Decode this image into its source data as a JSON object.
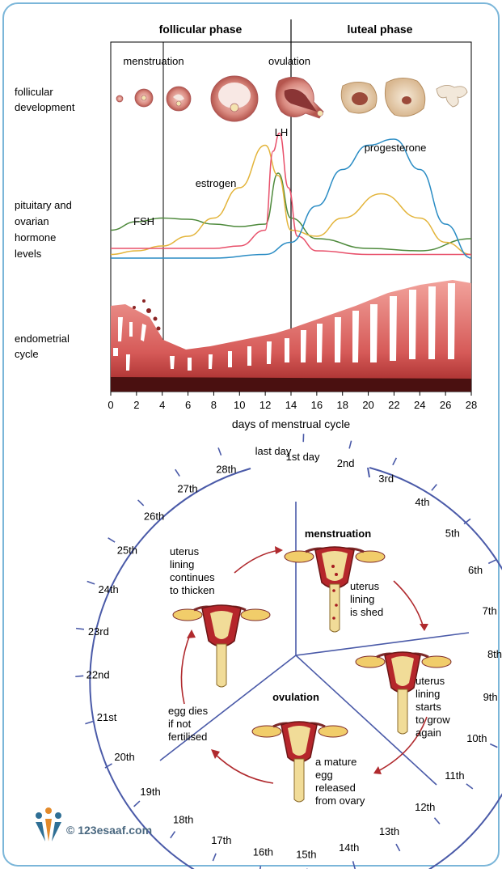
{
  "top": {
    "phase_follicular": "follicular phase",
    "phase_luteal": "luteal phase",
    "label_menstruation": "menstruation",
    "label_ovulation": "ovulation",
    "row_follicular": [
      "follicular",
      "development"
    ],
    "row_hormone": [
      "pituitary and",
      "ovarian",
      "hormone",
      "levels"
    ],
    "row_endometrial": [
      "endometrial",
      "cycle"
    ],
    "hormone_labels": {
      "lh": "LH",
      "estrogen": "estrogen",
      "fsh": "FSH",
      "progesterone": "progesterone"
    },
    "x_ticks": [
      "0",
      "2",
      "4",
      "6",
      "8",
      "10",
      "12",
      "14",
      "16",
      "18",
      "20",
      "22",
      "24",
      "26",
      "28"
    ],
    "x_label": "days of menstrual cycle",
    "colors": {
      "lh": "#e8506a",
      "estrogen": "#e3b43a",
      "fsh": "#4e8a3c",
      "progesterone": "#2a8cc4",
      "endometrium": "#d9726f",
      "base": "#4a1010"
    }
  },
  "chart_data": {
    "type": "line",
    "xlabel": "days of menstrual cycle",
    "xlim": [
      0,
      28
    ],
    "series": [
      {
        "name": "FSH",
        "x": [
          0,
          2,
          4,
          6,
          8,
          10,
          12,
          13,
          14,
          16,
          20,
          24,
          28
        ],
        "y": [
          0.25,
          0.32,
          0.35,
          0.34,
          0.3,
          0.28,
          0.3,
          0.72,
          0.35,
          0.18,
          0.1,
          0.08,
          0.18
        ]
      },
      {
        "name": "estrogen",
        "x": [
          0,
          2,
          4,
          6,
          8,
          10,
          12,
          13,
          14,
          16,
          18,
          21,
          24,
          26,
          28
        ],
        "y": [
          0.05,
          0.08,
          0.12,
          0.2,
          0.35,
          0.6,
          0.95,
          0.7,
          0.25,
          0.2,
          0.35,
          0.55,
          0.35,
          0.15,
          0.05
        ]
      },
      {
        "name": "LH",
        "x": [
          0,
          4,
          8,
          10,
          12,
          12.6,
          13.1,
          13.8,
          14.5,
          16,
          20,
          28
        ],
        "y": [
          0.1,
          0.1,
          0.1,
          0.12,
          0.25,
          0.9,
          1.05,
          0.6,
          0.2,
          0.08,
          0.05,
          0.05
        ]
      },
      {
        "name": "progesterone",
        "x": [
          0,
          4,
          8,
          12,
          14,
          16,
          18,
          20,
          22,
          24,
          26,
          28
        ],
        "y": [
          0.02,
          0.02,
          0.02,
          0.05,
          0.15,
          0.45,
          0.75,
          0.95,
          1.0,
          0.75,
          0.3,
          0.02
        ]
      }
    ]
  },
  "cycle": {
    "days": [
      "1st day",
      "2nd",
      "3rd",
      "4th",
      "5th",
      "6th",
      "7th",
      "8th",
      "9th",
      "10th",
      "11th",
      "12th",
      "13th",
      "14th",
      "15th",
      "16th",
      "17th",
      "18th",
      "19th",
      "20th",
      "21st",
      "22nd",
      "23rd",
      "24th",
      "25th",
      "26th",
      "27th",
      "28th"
    ],
    "last_day": "last day",
    "menstruation_title": "menstruation",
    "menstruation_text": [
      "uterus",
      "lining",
      "is shed"
    ],
    "grow_text": [
      "uterus",
      "lining",
      "starts",
      "to grow",
      "again"
    ],
    "ovulation_title": "ovulation",
    "ovulation_text": [
      "a mature",
      "egg",
      "released",
      "from ovary"
    ],
    "egg_text": [
      "egg dies",
      "if not",
      "fertilised"
    ],
    "thicken_text": [
      "uterus",
      "lining",
      "continues",
      "to thicken"
    ]
  },
  "watermark": {
    "text": "© 123esaaf.com"
  }
}
